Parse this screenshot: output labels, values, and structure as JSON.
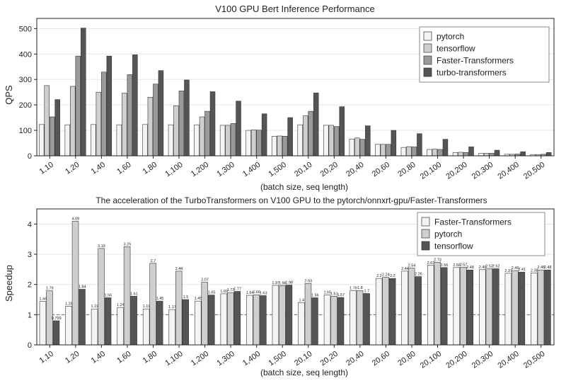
{
  "colors": {
    "pytorch": "#f4f4f4",
    "tensorflow": "#cfcfcf",
    "faster": "#9a9a9a",
    "turbo": "#555555",
    "axis": "#222222",
    "grid": "#e6e6e6"
  },
  "chart_data": [
    {
      "type": "bar",
      "title": "V100 GPU Bert Inference Performance",
      "xlabel": "(batch size, seq length)",
      "ylabel": "QPS",
      "ylim": [
        0,
        540
      ],
      "yticks": [
        0,
        100,
        200,
        300,
        400,
        500
      ],
      "legend_position": "top-right",
      "grid": true,
      "categories": [
        "1,10",
        "1,20",
        "1,40",
        "1,60",
        "1,80",
        "1,100",
        "1,200",
        "1,300",
        "1,400",
        "1,500",
        "20,10",
        "20,20",
        "20,40",
        "20,60",
        "20,80",
        "20,100",
        "20,200",
        "20,300",
        "20,400",
        "20,500"
      ],
      "series": [
        {
          "name": "pytorch",
          "color_key": "pytorch",
          "values": [
            123,
            122,
            123,
            122,
            123,
            122,
            122,
            120,
            100,
            77,
            122,
            120,
            66,
            45,
            33,
            25,
            13,
            10,
            6,
            5
          ]
        },
        {
          "name": "tensorflow",
          "color_key": "tensorflow",
          "values": [
            276,
            273,
            250,
            246,
            230,
            197,
            153,
            120,
            102,
            78,
            157,
            120,
            70,
            45,
            36,
            26,
            14,
            10,
            6,
            5
          ]
        },
        {
          "name": "Faster-Transformers",
          "color_key": "faster",
          "values": [
            153,
            392,
            329,
            319,
            282,
            255,
            175,
            127,
            101,
            77,
            175,
            115,
            65,
            45,
            35,
            25,
            13,
            10,
            7,
            6
          ]
        },
        {
          "name": "turbo-transformers",
          "color_key": "turbo",
          "values": [
            221,
            502,
            392,
            397,
            335,
            298,
            252,
            215,
            165,
            150,
            247,
            193,
            118,
            100,
            87,
            65,
            35,
            22,
            16,
            13
          ]
        }
      ]
    },
    {
      "type": "bar",
      "title": "The acceleration of the TurboTransformers on V100 GPU to the pytorch/onnxrt-gpu/Faster-Transformers",
      "xlabel": "(batch size, seq length)",
      "ylabel": "Speedup",
      "ylim": [
        0,
        4.5
      ],
      "yticks": [
        0,
        1,
        2,
        3,
        4
      ],
      "reference_line": 1,
      "legend_position": "top-right",
      "grid": true,
      "categories": [
        "1,10",
        "1,20",
        "1,40",
        "1,60",
        "1,80",
        "1,100",
        "1,200",
        "1,300",
        "1,400",
        "1,500",
        "20,10",
        "20,20",
        "20,40",
        "20,60",
        "20,80",
        "20,100",
        "20,200",
        "20,300",
        "20,400",
        "20,500"
      ],
      "series": [
        {
          "name": "Faster-Transformers",
          "color_key": "pytorch",
          "values": [
            1.44,
            1.28,
            1.19,
            1.24,
            1.19,
            1.17,
            1.45,
            1.69,
            1.64,
            1.97,
            1.4,
            1.65,
            1.79,
            2.2,
            2.44,
            2.63,
            2.56,
            2.49,
            2.37,
            2.38
          ],
          "labels": [
            "1.44",
            "1.28",
            "1.19",
            "1.24",
            "1.19",
            "1.17",
            "1.45",
            "1.69",
            "1.64",
            "1.97",
            "1.4",
            "1.65",
            "1.79",
            "2.2",
            "2.44",
            "2.63",
            "2.56",
            "2.49",
            "2.37",
            "2.38"
          ]
        },
        {
          "name": "pytorch",
          "color_key": "tensorflow",
          "values": [
            1.79,
            4.09,
            3.19,
            3.25,
            2.7,
            2.44,
            2.07,
            1.73,
            1.66,
            1.96,
            2.03,
            1.61,
            1.8,
            2.24,
            2.54,
            2.73,
            2.57,
            2.52,
            2.46,
            2.48
          ],
          "labels": [
            "1.79",
            "4.09",
            "3.19",
            "3.25",
            "2.7",
            "2.44",
            "2.07",
            "1.73",
            "1.66",
            "1.96",
            "2.03",
            "1.61",
            "1.8",
            "2.24",
            "2.54",
            "2.73",
            "2.57",
            "2.52",
            "2.46",
            "2.48"
          ]
        },
        {
          "name": "tensorflow",
          "color_key": "turbo",
          "values": [
            0.799,
            1.84,
            1.56,
            1.61,
            1.45,
            1.5,
            1.65,
            1.77,
            1.63,
            1.98,
            1.56,
            1.57,
            1.7,
            2.2,
            2.26,
            2.56,
            2.48,
            2.52,
            2.41,
            2.48
          ],
          "labels": [
            "0.799",
            "1.84",
            "1.56",
            "1.61",
            "1.45",
            "1.5",
            "1.65",
            "1.77",
            "1.63",
            "1.98",
            "1.56",
            "1.57",
            "1.7",
            "2.2",
            "2.26",
            "2.56",
            "2.48",
            "2.52",
            "2.41",
            "2.48"
          ]
        }
      ]
    }
  ]
}
